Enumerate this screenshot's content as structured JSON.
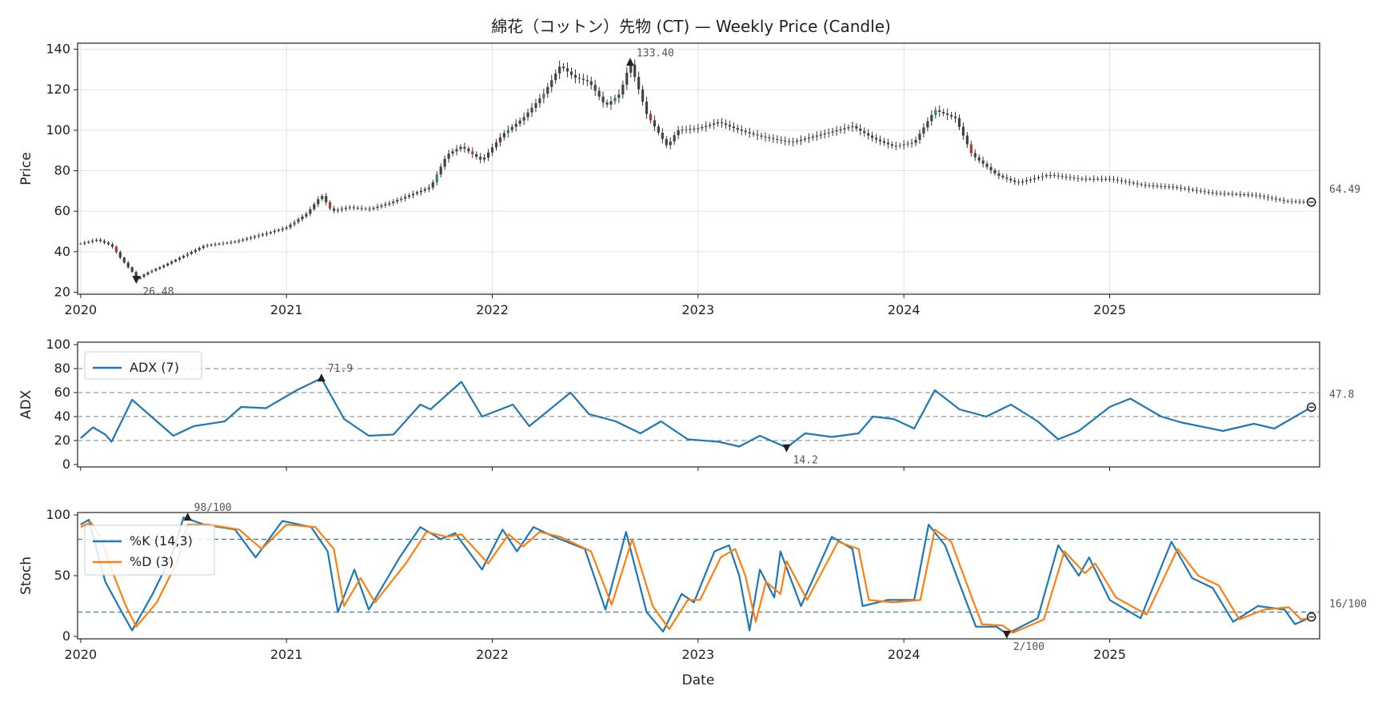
{
  "chart_data": [
    {
      "id": "price",
      "type": "candlestick",
      "title": "綿花（コットン）先物 (CT) — Weekly Price (Candle)",
      "ylabel": "Price",
      "xlabel": "",
      "ylim": [
        19,
        143
      ],
      "yticks": [
        "20",
        "40",
        "60",
        "80",
        "100",
        "120",
        "140"
      ],
      "xticks": [
        "2020",
        "2021",
        "2022",
        "2023",
        "2024",
        "2025"
      ],
      "grid": true,
      "close_path": [
        [
          2020.0,
          44
        ],
        [
          2020.08,
          46
        ],
        [
          2020.15,
          43
        ],
        [
          2020.2,
          36
        ],
        [
          2020.25,
          30
        ],
        [
          2020.27,
          26.5
        ],
        [
          2020.33,
          30
        ],
        [
          2020.4,
          33
        ],
        [
          2020.5,
          38
        ],
        [
          2020.6,
          43
        ],
        [
          2020.75,
          45
        ],
        [
          2020.9,
          49
        ],
        [
          2021.0,
          52
        ],
        [
          2021.1,
          59
        ],
        [
          2021.17,
          68
        ],
        [
          2021.22,
          60
        ],
        [
          2021.3,
          62
        ],
        [
          2021.4,
          61
        ],
        [
          2021.5,
          64
        ],
        [
          2021.6,
          68
        ],
        [
          2021.7,
          72
        ],
        [
          2021.78,
          88
        ],
        [
          2021.85,
          92
        ],
        [
          2021.95,
          85
        ],
        [
          2022.05,
          98
        ],
        [
          2022.15,
          106
        ],
        [
          2022.25,
          118
        ],
        [
          2022.33,
          132
        ],
        [
          2022.4,
          126
        ],
        [
          2022.47,
          124
        ],
        [
          2022.55,
          112
        ],
        [
          2022.62,
          118
        ],
        [
          2022.67,
          133.4
        ],
        [
          2022.75,
          108
        ],
        [
          2022.85,
          92
        ],
        [
          2022.9,
          100
        ],
        [
          2023.0,
          101
        ],
        [
          2023.1,
          104
        ],
        [
          2023.2,
          100
        ],
        [
          2023.3,
          97
        ],
        [
          2023.45,
          94
        ],
        [
          2023.6,
          98
        ],
        [
          2023.75,
          102
        ],
        [
          2023.85,
          96
        ],
        [
          2023.95,
          92
        ],
        [
          2024.05,
          94
        ],
        [
          2024.15,
          110
        ],
        [
          2024.25,
          106
        ],
        [
          2024.33,
          88
        ],
        [
          2024.45,
          78
        ],
        [
          2024.55,
          74
        ],
        [
          2024.7,
          78
        ],
        [
          2024.85,
          76
        ],
        [
          2025.0,
          76
        ],
        [
          2025.15,
          73
        ],
        [
          2025.3,
          72
        ],
        [
          2025.5,
          69
        ],
        [
          2025.7,
          68
        ],
        [
          2025.85,
          65
        ],
        [
          2025.98,
          64.49
        ]
      ],
      "annotations": [
        {
          "x": 2022.67,
          "y": 133.4,
          "label": "133.40",
          "marker": "up"
        },
        {
          "x": 2020.27,
          "y": 26.48,
          "label": "26.48",
          "marker": "down"
        },
        {
          "x": 2025.98,
          "y": 64.49,
          "label": "64.49",
          "marker": "last"
        }
      ]
    },
    {
      "id": "adx",
      "type": "line",
      "ylabel": "ADX",
      "ylim": [
        -2,
        102
      ],
      "yticks": [
        "0",
        "20",
        "40",
        "60",
        "80",
        "100"
      ],
      "hlines": [
        20,
        40,
        60,
        80
      ],
      "legend": [
        "ADX (7)"
      ],
      "series": [
        {
          "name": "ADX (7)",
          "color": "#1f77b4",
          "points": [
            [
              2020.0,
              22
            ],
            [
              2020.06,
              31
            ],
            [
              2020.12,
              25
            ],
            [
              2020.15,
              19
            ],
            [
              2020.25,
              54
            ],
            [
              2020.33,
              42
            ],
            [
              2020.45,
              24
            ],
            [
              2020.55,
              32
            ],
            [
              2020.7,
              36
            ],
            [
              2020.78,
              48
            ],
            [
              2020.9,
              47
            ],
            [
              2021.05,
              62
            ],
            [
              2021.17,
              71.9
            ],
            [
              2021.28,
              38
            ],
            [
              2021.4,
              24
            ],
            [
              2021.52,
              25
            ],
            [
              2021.65,
              50
            ],
            [
              2021.7,
              46
            ],
            [
              2021.85,
              69
            ],
            [
              2021.95,
              40
            ],
            [
              2022.1,
              50
            ],
            [
              2022.18,
              32
            ],
            [
              2022.38,
              60
            ],
            [
              2022.47,
              42
            ],
            [
              2022.6,
              36
            ],
            [
              2022.72,
              26
            ],
            [
              2022.82,
              36
            ],
            [
              2022.95,
              21
            ],
            [
              2023.1,
              19
            ],
            [
              2023.2,
              15
            ],
            [
              2023.3,
              24
            ],
            [
              2023.43,
              14.2
            ],
            [
              2023.52,
              26
            ],
            [
              2023.65,
              23
            ],
            [
              2023.78,
              26
            ],
            [
              2023.85,
              40
            ],
            [
              2023.95,
              38
            ],
            [
              2024.05,
              30
            ],
            [
              2024.15,
              62
            ],
            [
              2024.27,
              46
            ],
            [
              2024.4,
              40
            ],
            [
              2024.52,
              50
            ],
            [
              2024.65,
              36
            ],
            [
              2024.75,
              21
            ],
            [
              2024.85,
              28
            ],
            [
              2025.0,
              48
            ],
            [
              2025.1,
              55
            ],
            [
              2025.25,
              40
            ],
            [
              2025.35,
              35
            ],
            [
              2025.55,
              28
            ],
            [
              2025.7,
              34
            ],
            [
              2025.8,
              30
            ],
            [
              2025.98,
              47.8
            ]
          ]
        }
      ],
      "annotations": [
        {
          "x": 2021.17,
          "y": 71.9,
          "label": "71.9",
          "marker": "up"
        },
        {
          "x": 2023.43,
          "y": 14.2,
          "label": "14.2",
          "marker": "down"
        },
        {
          "x": 2025.98,
          "y": 47.8,
          "label": "47.8",
          "marker": "last"
        }
      ]
    },
    {
      "id": "stoch",
      "type": "line",
      "ylabel": "Stoch",
      "xlabel": "Date",
      "ylim": [
        -2,
        102
      ],
      "yticks": [
        "0",
        "50",
        "100"
      ],
      "xticks": [
        "2020",
        "2021",
        "2022",
        "2023",
        "2024",
        "2025"
      ],
      "hlines": [
        20,
        80
      ],
      "legend": [
        "%K (14,3)",
        "%D (3)"
      ],
      "series": [
        {
          "name": "%K (14,3)",
          "color": "#1f77b4",
          "points": [
            [
              2020.0,
              92
            ],
            [
              2020.04,
              96
            ],
            [
              2020.08,
              70
            ],
            [
              2020.12,
              45
            ],
            [
              2020.2,
              20
            ],
            [
              2020.25,
              5
            ],
            [
              2020.35,
              35
            ],
            [
              2020.45,
              70
            ],
            [
              2020.5,
              98
            ],
            [
              2020.6,
              92
            ],
            [
              2020.75,
              88
            ],
            [
              2020.85,
              65
            ],
            [
              2020.98,
              95
            ],
            [
              2021.12,
              90
            ],
            [
              2021.2,
              70
            ],
            [
              2021.25,
              20
            ],
            [
              2021.33,
              55
            ],
            [
              2021.4,
              22
            ],
            [
              2021.55,
              65
            ],
            [
              2021.65,
              90
            ],
            [
              2021.75,
              80
            ],
            [
              2021.82,
              85
            ],
            [
              2021.95,
              55
            ],
            [
              2022.05,
              88
            ],
            [
              2022.12,
              70
            ],
            [
              2022.2,
              90
            ],
            [
              2022.3,
              82
            ],
            [
              2022.45,
              72
            ],
            [
              2022.55,
              22
            ],
            [
              2022.65,
              86
            ],
            [
              2022.75,
              20
            ],
            [
              2022.83,
              4
            ],
            [
              2022.92,
              35
            ],
            [
              2022.98,
              28
            ],
            [
              2023.08,
              70
            ],
            [
              2023.15,
              75
            ],
            [
              2023.2,
              50
            ],
            [
              2023.25,
              5
            ],
            [
              2023.3,
              55
            ],
            [
              2023.37,
              32
            ],
            [
              2023.4,
              70
            ],
            [
              2023.5,
              25
            ],
            [
              2023.65,
              82
            ],
            [
              2023.75,
              72
            ],
            [
              2023.8,
              25
            ],
            [
              2023.92,
              30
            ],
            [
              2024.05,
              30
            ],
            [
              2024.12,
              92
            ],
            [
              2024.2,
              75
            ],
            [
              2024.3,
              30
            ],
            [
              2024.35,
              8
            ],
            [
              2024.45,
              8
            ],
            [
              2024.5,
              2
            ],
            [
              2024.65,
              15
            ],
            [
              2024.75,
              75
            ],
            [
              2024.85,
              50
            ],
            [
              2024.9,
              65
            ],
            [
              2025.0,
              30
            ],
            [
              2025.15,
              15
            ],
            [
              2025.3,
              78
            ],
            [
              2025.4,
              48
            ],
            [
              2025.5,
              40
            ],
            [
              2025.6,
              12
            ],
            [
              2025.72,
              25
            ],
            [
              2025.85,
              22
            ],
            [
              2025.9,
              10
            ],
            [
              2025.98,
              16
            ]
          ]
        },
        {
          "name": "%D (3)",
          "color": "#ff7f0e",
          "points": [
            [
              2020.0,
              90
            ],
            [
              2020.05,
              94
            ],
            [
              2020.1,
              80
            ],
            [
              2020.15,
              55
            ],
            [
              2020.22,
              25
            ],
            [
              2020.27,
              8
            ],
            [
              2020.37,
              28
            ],
            [
              2020.47,
              62
            ],
            [
              2020.52,
              92
            ],
            [
              2020.62,
              92
            ],
            [
              2020.77,
              88
            ],
            [
              2020.88,
              72
            ],
            [
              2021.0,
              92
            ],
            [
              2021.14,
              90
            ],
            [
              2021.23,
              72
            ],
            [
              2021.28,
              25
            ],
            [
              2021.36,
              48
            ],
            [
              2021.43,
              28
            ],
            [
              2021.58,
              60
            ],
            [
              2021.68,
              86
            ],
            [
              2021.78,
              82
            ],
            [
              2021.85,
              84
            ],
            [
              2021.98,
              60
            ],
            [
              2022.08,
              84
            ],
            [
              2022.15,
              74
            ],
            [
              2022.23,
              86
            ],
            [
              2022.33,
              82
            ],
            [
              2022.48,
              70
            ],
            [
              2022.58,
              26
            ],
            [
              2022.68,
              80
            ],
            [
              2022.78,
              25
            ],
            [
              2022.86,
              6
            ],
            [
              2022.95,
              30
            ],
            [
              2023.01,
              30
            ],
            [
              2023.11,
              65
            ],
            [
              2023.18,
              72
            ],
            [
              2023.23,
              50
            ],
            [
              2023.28,
              12
            ],
            [
              2023.33,
              45
            ],
            [
              2023.4,
              35
            ],
            [
              2023.43,
              62
            ],
            [
              2023.53,
              30
            ],
            [
              2023.68,
              78
            ],
            [
              2023.78,
              72
            ],
            [
              2023.83,
              30
            ],
            [
              2023.95,
              28
            ],
            [
              2024.08,
              30
            ],
            [
              2024.15,
              88
            ],
            [
              2024.23,
              78
            ],
            [
              2024.33,
              32
            ],
            [
              2024.38,
              10
            ],
            [
              2024.48,
              9
            ],
            [
              2024.53,
              3
            ],
            [
              2024.68,
              14
            ],
            [
              2024.78,
              70
            ],
            [
              2024.88,
              52
            ],
            [
              2024.93,
              60
            ],
            [
              2025.03,
              32
            ],
            [
              2025.18,
              18
            ],
            [
              2025.33,
              72
            ],
            [
              2025.43,
              50
            ],
            [
              2025.53,
              42
            ],
            [
              2025.63,
              14
            ],
            [
              2025.75,
              22
            ],
            [
              2025.87,
              24
            ],
            [
              2025.93,
              14
            ],
            [
              2025.98,
              15
            ]
          ]
        }
      ],
      "annotations": [
        {
          "x": 2020.52,
          "y": 98,
          "label": "98/100",
          "marker": "up"
        },
        {
          "x": 2024.5,
          "y": 2,
          "label": "2/100",
          "marker": "down"
        },
        {
          "x": 2025.98,
          "y": 16,
          "label": "16/100",
          "marker": "last"
        }
      ]
    }
  ],
  "colors": {
    "adx": "#1f77b4",
    "stoch_k": "#1f77b4",
    "stoch_d": "#ff7f0e",
    "hline_adx": "#999999",
    "hline_stoch": "#1f77b4",
    "up_candle": "#2e8b57",
    "down_candle": "#b03a2e",
    "wick": "#333333"
  }
}
